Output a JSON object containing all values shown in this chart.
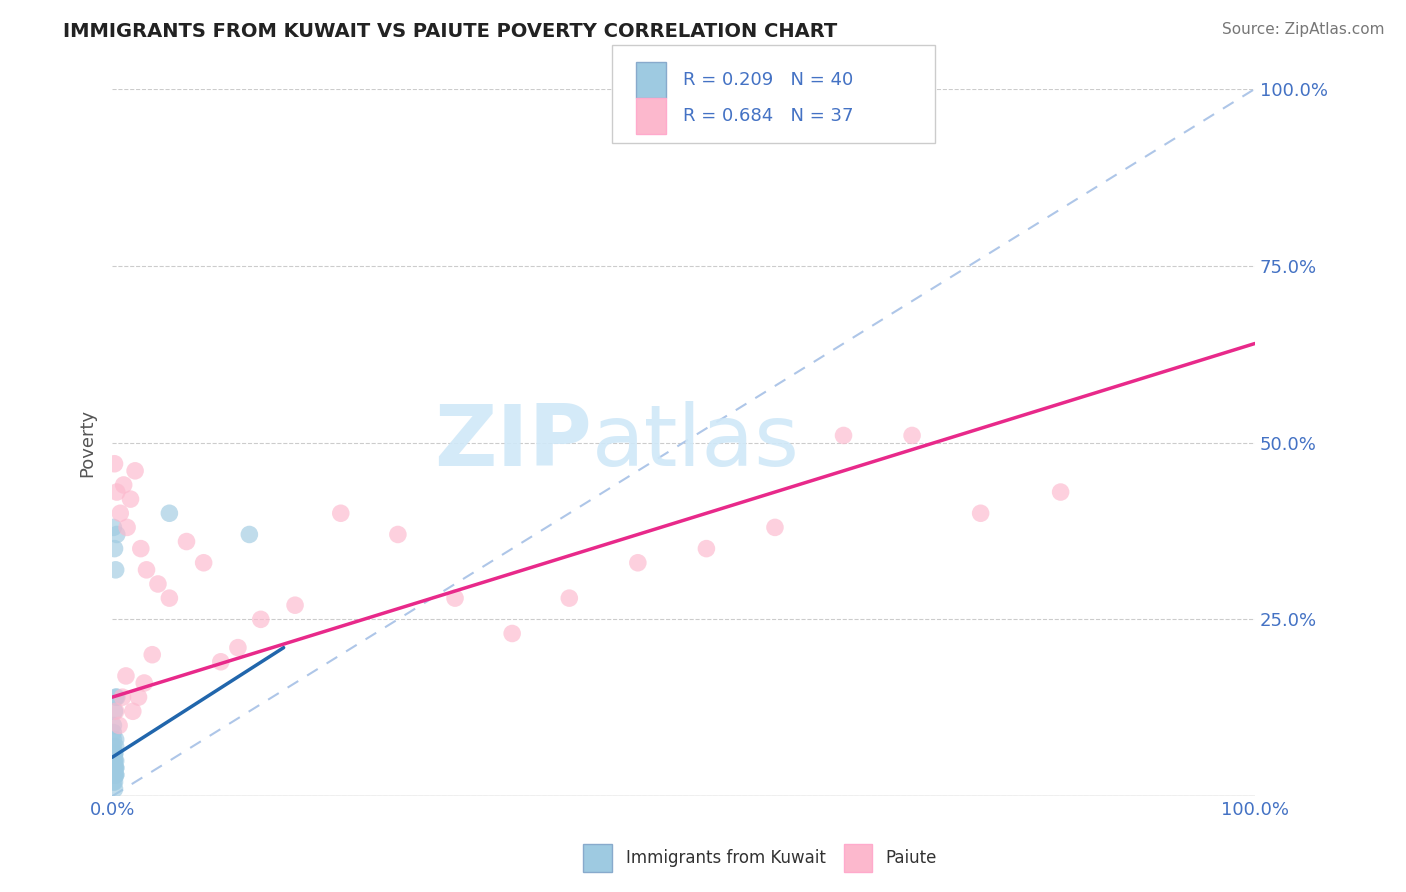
{
  "title": "IMMIGRANTS FROM KUWAIT VS PAIUTE POVERTY CORRELATION CHART",
  "source": "Source: ZipAtlas.com",
  "ylabel": "Poverty",
  "legend_label1": "Immigrants from Kuwait",
  "legend_label2": "Paiute",
  "R1": 0.209,
  "N1": 40,
  "R2": 0.684,
  "N2": 37,
  "color_blue": "#9ecae1",
  "color_pink": "#fcb8cd",
  "color_blue_line": "#2166ac",
  "color_pink_line": "#e8298a",
  "color_dashed": "#aec6e8",
  "watermark_text": "ZIPatlas",
  "watermark_color": "#d0e8f8",
  "xlim": [
    0.0,
    1.0
  ],
  "ylim": [
    0.0,
    1.0
  ],
  "blue_x": [
    0.002,
    0.001,
    0.003,
    0.002,
    0.001,
    0.002,
    0.003,
    0.001,
    0.002,
    0.001,
    0.002,
    0.001,
    0.002,
    0.003,
    0.001,
    0.002,
    0.001,
    0.002,
    0.003,
    0.001,
    0.002,
    0.001,
    0.003,
    0.002,
    0.001,
    0.002,
    0.001,
    0.003,
    0.002,
    0.003,
    0.004,
    0.003,
    0.002,
    0.001,
    0.003,
    0.002,
    0.004,
    0.05,
    0.12,
    0.002
  ],
  "blue_y": [
    0.03,
    0.02,
    0.05,
    0.04,
    0.06,
    0.03,
    0.04,
    0.05,
    0.02,
    0.03,
    0.04,
    0.07,
    0.06,
    0.08,
    0.05,
    0.03,
    0.09,
    0.04,
    0.03,
    0.05,
    0.06,
    0.04,
    0.07,
    0.05,
    0.08,
    0.06,
    0.1,
    0.04,
    0.05,
    0.03,
    0.14,
    0.32,
    0.35,
    0.38,
    0.14,
    0.12,
    0.37,
    0.4,
    0.37,
    0.01
  ],
  "pink_x": [
    0.002,
    0.004,
    0.007,
    0.01,
    0.013,
    0.016,
    0.02,
    0.025,
    0.03,
    0.04,
    0.05,
    0.065,
    0.08,
    0.095,
    0.11,
    0.13,
    0.16,
    0.2,
    0.25,
    0.3,
    0.35,
    0.4,
    0.46,
    0.52,
    0.58,
    0.64,
    0.7,
    0.76,
    0.83,
    0.003,
    0.006,
    0.009,
    0.012,
    0.018,
    0.023,
    0.028,
    0.035
  ],
  "pink_y": [
    0.47,
    0.43,
    0.4,
    0.44,
    0.38,
    0.42,
    0.46,
    0.35,
    0.32,
    0.3,
    0.28,
    0.36,
    0.33,
    0.19,
    0.21,
    0.25,
    0.27,
    0.4,
    0.37,
    0.28,
    0.23,
    0.28,
    0.33,
    0.35,
    0.38,
    0.51,
    0.51,
    0.4,
    0.43,
    0.12,
    0.1,
    0.14,
    0.17,
    0.12,
    0.14,
    0.16,
    0.2
  ],
  "blue_line_x": [
    0.0,
    0.15
  ],
  "blue_line_y": [
    0.055,
    0.21
  ],
  "pink_line_x": [
    0.0,
    1.0
  ],
  "pink_line_y": [
    0.14,
    0.64
  ]
}
